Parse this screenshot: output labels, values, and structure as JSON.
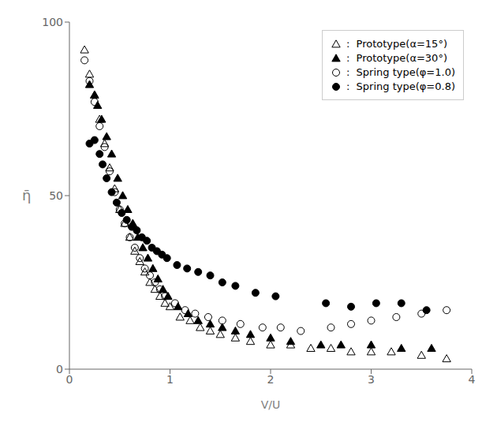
{
  "chart_data": {
    "type": "scatter",
    "title": "",
    "xlabel": "V/U",
    "ylabel": "η̄",
    "xlim": [
      0,
      4
    ],
    "ylim": [
      0,
      100
    ],
    "xticks": [
      0,
      1,
      2,
      3,
      4
    ],
    "yticks": [
      0,
      50,
      100
    ],
    "grid": false,
    "legend": "upper right",
    "series": [
      {
        "name": " :  Prototype(α=15°)",
        "color": "#000000",
        "marker": "triangle-open",
        "x": [
          0.15,
          0.2,
          0.25,
          0.3,
          0.35,
          0.4,
          0.45,
          0.5,
          0.55,
          0.6,
          0.65,
          0.7,
          0.75,
          0.8,
          0.85,
          0.9,
          0.95,
          1.0,
          1.1,
          1.2,
          1.3,
          1.4,
          1.5,
          1.65,
          1.8,
          2.0,
          2.2,
          2.4,
          2.6,
          2.8,
          3.0,
          3.2,
          3.5,
          3.75
        ],
        "values": [
          92,
          85,
          79,
          72,
          65,
          58,
          52,
          46,
          42,
          38,
          34,
          31,
          28,
          25,
          23,
          21,
          19,
          18,
          15,
          14,
          12,
          11,
          10,
          9,
          8,
          7,
          7,
          6,
          6,
          5,
          5,
          5,
          4,
          3
        ]
      },
      {
        "name": " :  Prototype(α=30°)",
        "color": "#000000",
        "marker": "triangle",
        "x": [
          0.2,
          0.25,
          0.28,
          0.32,
          0.37,
          0.42,
          0.48,
          0.53,
          0.58,
          0.63,
          0.68,
          0.73,
          0.78,
          0.83,
          0.88,
          0.93,
          0.98,
          1.08,
          1.18,
          1.28,
          1.4,
          1.52,
          1.65,
          1.8,
          2.0,
          2.2,
          2.5,
          2.7,
          3.0,
          3.3,
          3.6
        ],
        "values": [
          82,
          79,
          76,
          72,
          67,
          62,
          55,
          50,
          46,
          42,
          38,
          35,
          32,
          29,
          26,
          23,
          21,
          18,
          16,
          14,
          13,
          12,
          11,
          10,
          9,
          8,
          7,
          7,
          7,
          6,
          6
        ]
      },
      {
        "name": " :  Spring type(φ=1.0)",
        "color": "#000000",
        "marker": "circle-open",
        "x": [
          0.15,
          0.2,
          0.25,
          0.3,
          0.35,
          0.4,
          0.45,
          0.5,
          0.55,
          0.6,
          0.65,
          0.7,
          0.75,
          0.8,
          0.85,
          0.9,
          0.95,
          1.05,
          1.15,
          1.25,
          1.38,
          1.52,
          1.7,
          1.92,
          2.1,
          2.3,
          2.6,
          2.8,
          3.0,
          3.25,
          3.5,
          3.75
        ],
        "values": [
          89,
          83,
          77,
          70,
          64,
          57,
          51,
          46,
          42,
          38,
          35,
          32,
          29,
          27,
          25,
          23,
          21,
          19,
          17,
          16,
          15,
          14,
          13,
          12,
          12,
          11,
          12,
          13,
          14,
          15,
          16,
          17
        ]
      },
      {
        "name": " :  Spring type(φ=0.8)",
        "color": "#000000",
        "marker": "circle",
        "x": [
          0.2,
          0.25,
          0.3,
          0.33,
          0.37,
          0.42,
          0.47,
          0.52,
          0.57,
          0.62,
          0.67,
          0.72,
          0.77,
          0.82,
          0.87,
          0.92,
          0.97,
          1.07,
          1.17,
          1.28,
          1.4,
          1.52,
          1.65,
          1.85,
          2.05,
          2.55,
          2.8,
          3.05,
          3.3,
          3.55
        ],
        "values": [
          65,
          66,
          62,
          59,
          55,
          51,
          48,
          45,
          43,
          41,
          40,
          38,
          37,
          35,
          34,
          33,
          32,
          30,
          29,
          28,
          27,
          25,
          24,
          22,
          21,
          19,
          18,
          19,
          19,
          17
        ]
      }
    ]
  }
}
